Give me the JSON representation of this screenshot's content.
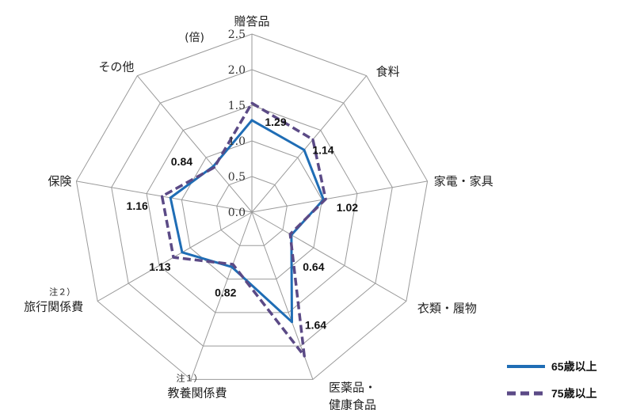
{
  "chart_data": {
    "type": "radar",
    "unit_label": "(倍)",
    "rlim": [
      0,
      2.5
    ],
    "ticks": [
      "0.0",
      "0.5",
      "1.0",
      "1.5",
      "2.0",
      "2.5"
    ],
    "categories": [
      {
        "label": [
          "贈答品"
        ]
      },
      {
        "label": [
          "食料"
        ]
      },
      {
        "label": [
          "家電・家具"
        ]
      },
      {
        "label": [
          "衣類・履物"
        ]
      },
      {
        "label": [
          "医薬品・",
          "健康食品"
        ]
      },
      {
        "label": [
          "教養関係費"
        ],
        "note": "注１）"
      },
      {
        "label": [
          "旅行関係費"
        ],
        "note": "注２）"
      },
      {
        "label": [
          "保険"
        ]
      },
      {
        "label": [
          "その他"
        ]
      }
    ],
    "series": [
      {
        "name": "65歳以上",
        "color": "#1f6db5",
        "style": "solid",
        "values": [
          1.29,
          1.14,
          1.02,
          0.64,
          1.64,
          0.82,
          1.13,
          1.16,
          0.84
        ]
      },
      {
        "name": "75歳以上",
        "color": "#5b4a86",
        "style": "dashed",
        "values": [
          1.53,
          1.33,
          1.05,
          0.62,
          2.15,
          0.78,
          1.27,
          1.28,
          0.82
        ]
      }
    ],
    "data_labels": [
      "1.29",
      "1.14",
      "1.02",
      "0.64",
      "1.64",
      "0.82",
      "1.13",
      "1.16",
      "0.84"
    ],
    "legend_position": "bottom-right",
    "grid": true
  }
}
